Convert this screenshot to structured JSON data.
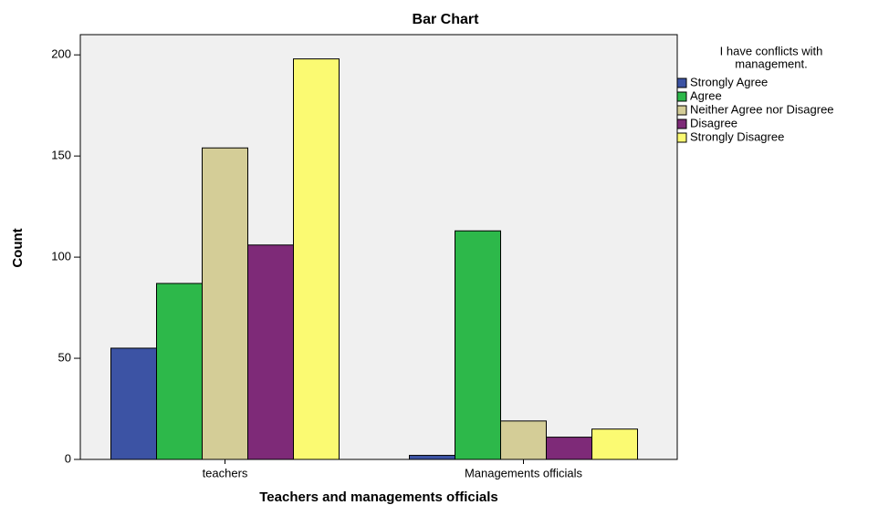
{
  "chart_data": {
    "type": "bar",
    "title": "Bar Chart",
    "x_label": "Teachers and managements officials",
    "y_label": "Count",
    "legend_title": [
      "I have conflicts with",
      "management."
    ],
    "categories": [
      "teachers",
      "Managements officials"
    ],
    "series": [
      {
        "name": "Strongly Agree",
        "color": "#3c53a4",
        "values": [
          55,
          2
        ]
      },
      {
        "name": "Agree",
        "color": "#2db84a",
        "values": [
          87,
          113
        ]
      },
      {
        "name": "Neither Agree nor Disagree",
        "color": "#d4cd97",
        "values": [
          154,
          19
        ]
      },
      {
        "name": "Disagree",
        "color": "#7e2a78",
        "values": [
          106,
          11
        ]
      },
      {
        "name": "Strongly Disagree",
        "color": "#fbfa72",
        "values": [
          198,
          15
        ]
      }
    ],
    "ylim": [
      0,
      210
    ],
    "yticks": [
      0,
      50,
      100,
      150,
      200
    ],
    "grid": false,
    "legend": "right"
  }
}
